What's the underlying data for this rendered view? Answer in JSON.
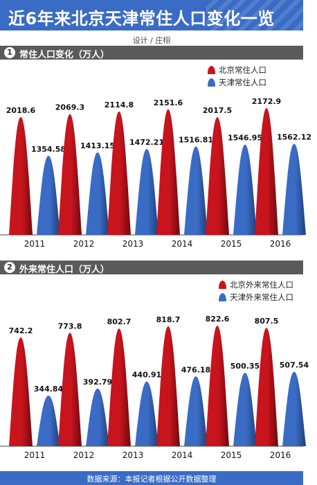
{
  "title": "近6年来北京天津常住人口变化一览",
  "credit": "设计 / 庄栩",
  "source": "数据来源：本报记者根据公开数据整理",
  "colors": {
    "beijing": "#c8141c",
    "tianjin": "#3a6cc6"
  },
  "sections": [
    {
      "num": "1",
      "title": "常住人口变化（万人）",
      "legend": [
        "北京常住人口",
        "天津常住人口"
      ]
    },
    {
      "num": "2",
      "title": "外来常住人口（万人）",
      "legend": [
        "北京外来常住人口",
        "天津外来常住人口"
      ]
    }
  ],
  "chart_data": [
    {
      "type": "bar",
      "title": "常住人口变化（万人）",
      "categories": [
        "2011",
        "2012",
        "2013",
        "2014",
        "2015",
        "2016"
      ],
      "series": [
        {
          "name": "北京常住人口",
          "color": "#c8141c",
          "values": [
            2018.6,
            2069.3,
            2114.8,
            2151.6,
            2017.5,
            2172.9
          ]
        },
        {
          "name": "天津常住人口",
          "color": "#3a6cc6",
          "values": [
            1354.58,
            1413.15,
            1472.21,
            1516.81,
            1546.95,
            1562.12
          ]
        }
      ],
      "legend": "top-right",
      "grid": false
    },
    {
      "type": "bar",
      "title": "外来常住人口（万人）",
      "categories": [
        "2011",
        "2012",
        "2013",
        "2014",
        "2015",
        "2016"
      ],
      "series": [
        {
          "name": "北京外来常住人口",
          "color": "#c8141c",
          "values": [
            742.2,
            773.8,
            802.7,
            818.7,
            822.6,
            807.5
          ]
        },
        {
          "name": "天津外来常住人口",
          "color": "#3a6cc6",
          "values": [
            344.84,
            392.79,
            440.91,
            476.18,
            500.35,
            507.54
          ]
        }
      ],
      "legend": "top-right",
      "grid": false
    }
  ]
}
